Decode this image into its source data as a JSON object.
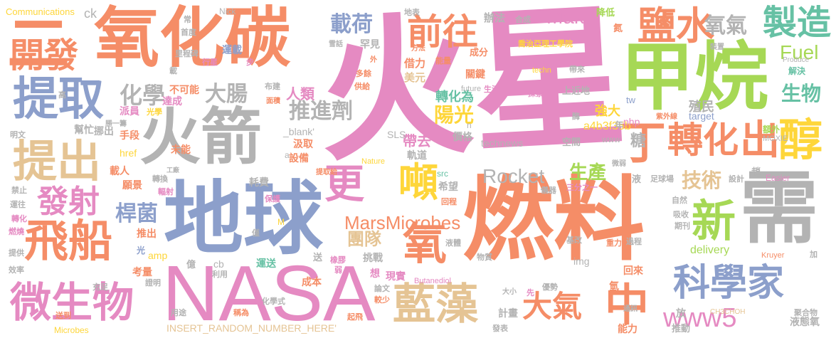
{
  "palette": {
    "orange": "#F58D67",
    "pink": "#E58AC2",
    "blue": "#8C9FCB",
    "green": "#A6D855",
    "teal": "#66C1A4",
    "yellow": "#FED63A",
    "tan": "#E5C494",
    "gray": "#B3B3B3"
  },
  "words": {
    "w01": "火星",
    "w02": "燃料",
    "w03": "地球",
    "w04": "NASA",
    "w05": "火箭",
    "w06": "氧化碳",
    "w07": "二",
    "w08": "甲烷",
    "w09": "需",
    "w10": "提取",
    "w11": "提出",
    "w12": "丁",
    "w13": "轉化",
    "w14": "出",
    "w15": "醇",
    "w16": "飛船",
    "w17": "微生物",
    "w18": "科學家",
    "w19": "藍藻",
    "w20": "更",
    "w21": "噸",
    "w22": "鹽水",
    "w23": "製造",
    "w24": "開發",
    "w25": "前往",
    "w26": "新",
    "w27": "中",
    "w28": "氧",
    "w29": "大氣",
    "w30": "發射",
    "w31": "www5",
    "w32": "化學",
    "w33": "大腸",
    "w34": "推進劑",
    "w35": "桿菌",
    "w36": "載荷",
    "w37": "Make",
    "w38": "Fuel",
    "w39": "生物",
    "w40": "氧氣",
    "w41": "Rocket",
    "w42": "生產",
    "w43": "技術",
    "w44": "MarsMicrobes",
    "w45": "團隊",
    "w46": "陽光",
    "w47": "轉化為",
    "w48": "糖",
    "w49": "殖民",
    "w50": "強大",
    "w51": "a4b3f35b",
    "w52": "帶去",
    "w53": "人類",
    "w54": "Communications",
    "w55": "ck",
    "w56": "Nick",
    "w57": "常",
    "w58": "首度",
    "w59": "里程碑",
    "w60": "行星",
    "w61": "步",
    "w62": "運載",
    "w63": "罕見",
    "w64": "不可能",
    "w65": "達成",
    "w66": "派員",
    "w67": "光學",
    "w68": "勝一籌",
    "w69": "挪出",
    "w70": "幫忙",
    "w71": "手段",
    "w72": "未能",
    "w73": "href",
    "w74": "載人",
    "w75": "願景",
    "w76": "轉換",
    "w77": "輻射",
    "w78": "工廠",
    "w79": "耗費",
    "w80": "保護",
    "w81": "汲取",
    "w82": "設備",
    "w83": "提取給",
    "w84": "_blank'",
    "w85": "SLS",
    "w86": "Nature",
    "w87": "src",
    "w88": "technews",
    "w89": "空間",
    "w90": "www",
    "w91": "php",
    "w92": "target",
    "w93": "tw",
    "w94": "上近地",
    "w95": "探索",
    "w96": "生活",
    "w97": "future",
    "w98": "techn",
    "w99": "帶來",
    "w100": "解決",
    "w101": "MOXIE",
    "w102": "Produce",
    "w103": "額外",
    "w104": "紫外線",
    "w105": "酶",
    "w106": "降低",
    "w107": "氮",
    "w108": "裝置",
    "w109": "地表",
    "w110": "合成",
    "w111": "辦法",
    "w112": "成分",
    "w113": "借力",
    "w114": "美元",
    "w115": "能量",
    "w116": "方法",
    "w117": "關鍵",
    "w118": "多餘",
    "w119": "供給",
    "w120": "布建",
    "w121": "面積",
    "w122": "雪話",
    "w123": "外",
    "w124": "喬治亞理工學院",
    "w125": "年",
    "w126": "價格",
    "w127": "軌道",
    "w128": "希望",
    "w129": "回程",
    "w130": "三分之一",
    "w131": "儀器",
    "w132": "微弱",
    "w133": "足球場",
    "w134": "設計",
    "w135": "趙",
    "w136": "Easier",
    "w137": "液",
    "w138": "自然",
    "w139": "吸收",
    "w140": "期刊",
    "w141": "基改",
    "w142": "重力",
    "w143": "過程",
    "w144": "Kruyer",
    "w145": "加",
    "w146": "物質",
    "w147": "液體",
    "w148": "挑戰",
    "w149": "橡膠",
    "w150": "送",
    "w151": "弱",
    "w152": "想",
    "w153": "現實",
    "w154": "成本",
    "w155": "論文",
    "w156": "較少",
    "w157": "Butanediol",
    "w158": "img",
    "w159": "回來",
    "w160": "優勢",
    "w161": "氫",
    "w162": "大小",
    "w163": "先",
    "w164": "delivery",
    "w165": "amp",
    "w166": "光",
    "w167": "cb",
    "w168": "利用",
    "w169": "億",
    "w170": "運送",
    "w171": "考量",
    "w172": "證明",
    "w173": "推出",
    "w174": "僅",
    "w175": "M",
    "w176": "充足",
    "w177": "效率",
    "w178": "提供",
    "w179": "燃燒",
    "w180": "轉化",
    "w181": "運往",
    "w182": "禁止",
    "w183": "明文",
    "w184": "高",
    "w185": "用途",
    "w186": "稱為",
    "w187": "化學式",
    "w188": "起飛",
    "w189": "計畫",
    "w190": "發表",
    "w191": "放",
    "w192": "能力",
    "w193": "推動",
    "w194": "液態氧",
    "w195": "通訊",
    "w196": "聚合物",
    "w197": "CH3CHOH",
    "w198": "INSERT_RANDOM_NUMBER_HERE'",
    "w199": "送到",
    "w200": "Microbes",
    "w201": "n",
    "w202": "a",
    "w203": "載"
  }
}
